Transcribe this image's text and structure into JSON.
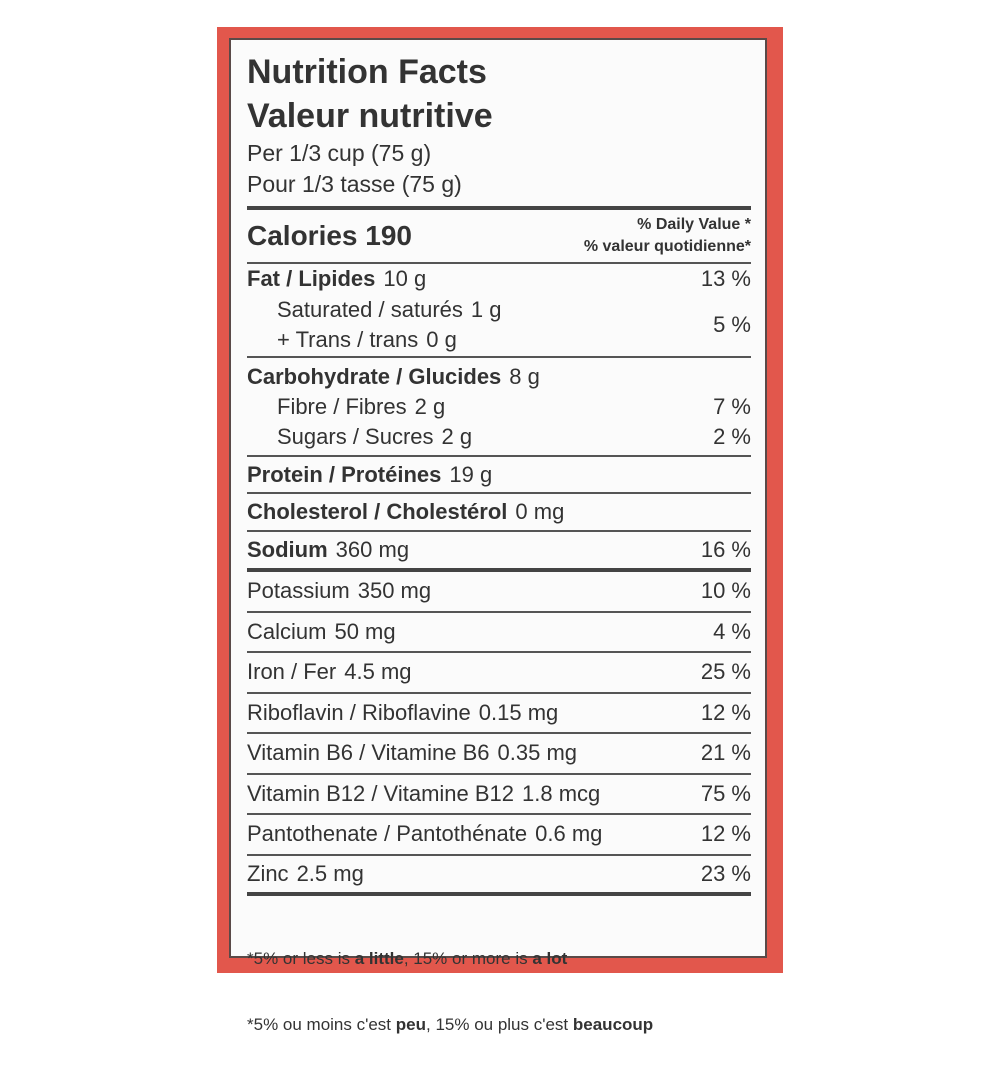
{
  "header": {
    "title_en": "Nutrition Facts",
    "title_fr": "Valeur nutritive",
    "serving_en": "Per 1/3 cup (75 g)",
    "serving_fr": "Pour 1/3 tasse (75 g)"
  },
  "calories": "Calories 190",
  "daily_value": {
    "en": "% Daily Value *",
    "fr": "% valeur quotidienne*"
  },
  "fat": {
    "name": "Fat / Lipides",
    "amount": "10 g",
    "dv": "13 %"
  },
  "saturated_trans": {
    "saturated": {
      "name": "Saturated / saturés",
      "amount": "1 g"
    },
    "trans": {
      "name": "+ Trans / trans",
      "amount": "0 g"
    },
    "dv": "5 %"
  },
  "carbohydrate": {
    "name": "Carbohydrate / Glucides",
    "amount": "8 g"
  },
  "fibre": {
    "name": "Fibre / Fibres",
    "amount": "2 g",
    "dv": "7 %"
  },
  "sugars": {
    "name": "Sugars / Sucres",
    "amount": "2 g",
    "dv": "2 %"
  },
  "protein": {
    "name": "Protein / Protéines",
    "amount": "19 g"
  },
  "cholesterol": {
    "name": "Cholesterol / Cholestérol",
    "amount": "0 mg"
  },
  "sodium": {
    "name": "Sodium",
    "amount": "360 mg",
    "dv": "16 %"
  },
  "micronutrients": [
    {
      "name": "Potassium",
      "amount": "350 mg",
      "dv": "10 %"
    },
    {
      "name": "Calcium",
      "amount": "50 mg",
      "dv": "4 %"
    },
    {
      "name": "Iron / Fer",
      "amount": "4.5 mg",
      "dv": "25 %"
    },
    {
      "name": "Riboflavin / Riboflavine",
      "amount": "0.15 mg",
      "dv": "12 %"
    },
    {
      "name": "Vitamin B6 / Vitamine B6",
      "amount": "0.35 mg",
      "dv": "21 %"
    },
    {
      "name": "Vitamin B12 / Vitamine B12",
      "amount": "1.8 mcg",
      "dv": "75 %"
    },
    {
      "name": "Pantothenate / Pantothénate",
      "amount": "0.6 mg",
      "dv": "12 %"
    },
    {
      "name": "Zinc",
      "amount": "2.5 mg",
      "dv": "23 %"
    }
  ],
  "footnote": {
    "en": [
      "*5% or less is ",
      "a little",
      ", 15% or more is ",
      "a lot"
    ],
    "fr": [
      "*5% ou moins c'est ",
      "peu",
      ", 15% ou plus c'est ",
      "beaucoup"
    ]
  }
}
